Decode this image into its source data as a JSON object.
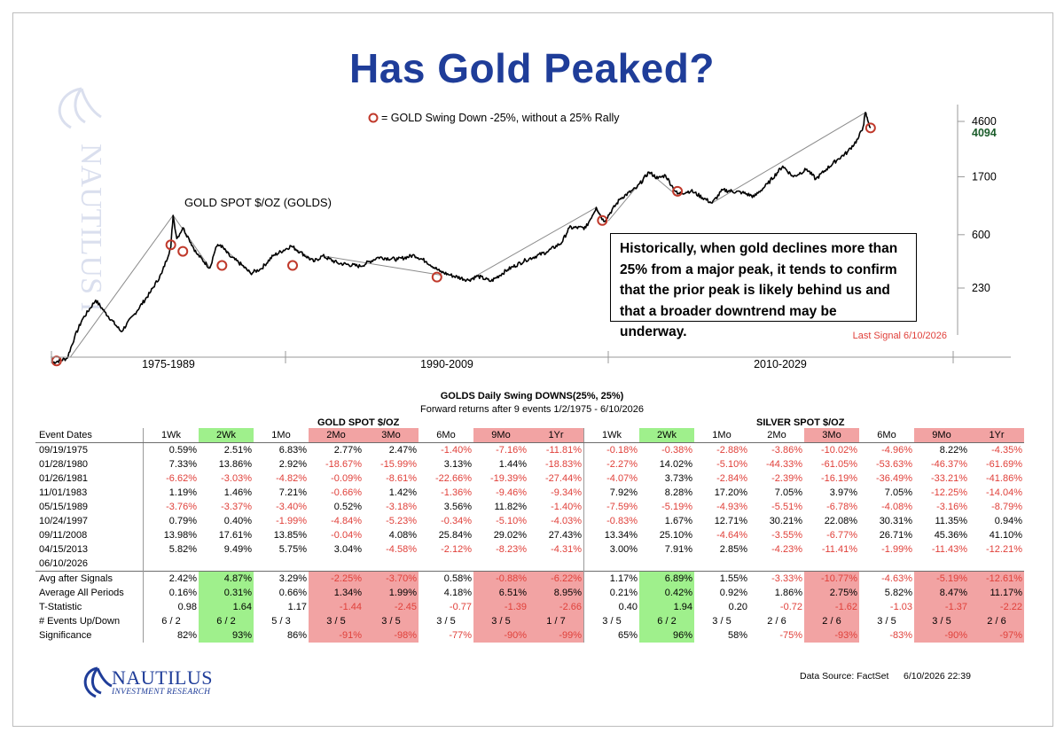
{
  "title": "Has Gold Peaked?",
  "legend": "= GOLD Swing Down -25%, without a 25% Rally",
  "series_label": "GOLD SPOT $/OZ (GOLDS)",
  "callout": "Historically, when gold declines more than 25% from a major peak, it tends to confirm that the prior peak is likely behind us and that a broader downtrend may be underway.",
  "last_signal": "Last Signal 6/10/2026",
  "watermark": "NAUTILUS INVESTMENT RESEARCH",
  "colors": {
    "title": "#1f3d99",
    "marker": "#c0392b",
    "neg": "#e0403a",
    "red_cell": "#f2a3a3",
    "green_cell": "#9ff08c",
    "last_value": "#1a5c2a"
  },
  "chart_data": {
    "type": "line",
    "series": [
      {
        "name": "GOLD SPOT $/OZ (GOLDS)"
      }
    ],
    "y_scale": "log",
    "y_ticks": [
      "4600",
      "1700",
      "600",
      "230"
    ],
    "last_value": "4094",
    "x_periods": [
      "1975-1989",
      "1990-2009",
      "2010-2029"
    ],
    "points": [
      {
        "x": 1972.0,
        "y": 60
      },
      {
        "x": 1973.0,
        "y": 65
      },
      {
        "x": 1973.5,
        "y": 95
      },
      {
        "x": 1974.0,
        "y": 130
      },
      {
        "x": 1974.9,
        "y": 185
      },
      {
        "x": 1975.5,
        "y": 150
      },
      {
        "x": 1976.6,
        "y": 105
      },
      {
        "x": 1977.5,
        "y": 145
      },
      {
        "x": 1978.5,
        "y": 210
      },
      {
        "x": 1979.3,
        "y": 300
      },
      {
        "x": 1979.9,
        "y": 480
      },
      {
        "x": 1980.05,
        "y": 850
      },
      {
        "x": 1980.3,
        "y": 560
      },
      {
        "x": 1980.7,
        "y": 680
      },
      {
        "x": 1981.1,
        "y": 560
      },
      {
        "x": 1981.6,
        "y": 430
      },
      {
        "x": 1982.5,
        "y": 330
      },
      {
        "x": 1982.9,
        "y": 480
      },
      {
        "x": 1983.2,
        "y": 500
      },
      {
        "x": 1983.8,
        "y": 410
      },
      {
        "x": 1984.6,
        "y": 350
      },
      {
        "x": 1985.2,
        "y": 300
      },
      {
        "x": 1985.9,
        "y": 325
      },
      {
        "x": 1986.7,
        "y": 410
      },
      {
        "x": 1987.9,
        "y": 490
      },
      {
        "x": 1988.5,
        "y": 440
      },
      {
        "x": 1989.4,
        "y": 370
      },
      {
        "x": 1990.0,
        "y": 410
      },
      {
        "x": 1991.0,
        "y": 360
      },
      {
        "x": 1992.5,
        "y": 340
      },
      {
        "x": 1993.7,
        "y": 400
      },
      {
        "x": 1995.0,
        "y": 385
      },
      {
        "x": 1996.1,
        "y": 415
      },
      {
        "x": 1996.9,
        "y": 370
      },
      {
        "x": 1997.8,
        "y": 310
      },
      {
        "x": 1998.5,
        "y": 290
      },
      {
        "x": 1999.7,
        "y": 265
      },
      {
        "x": 2000.3,
        "y": 285
      },
      {
        "x": 2001.2,
        "y": 260
      },
      {
        "x": 2002.3,
        "y": 320
      },
      {
        "x": 2003.5,
        "y": 380
      },
      {
        "x": 2004.9,
        "y": 440
      },
      {
        "x": 2005.9,
        "y": 520
      },
      {
        "x": 2006.4,
        "y": 680
      },
      {
        "x": 2007.5,
        "y": 680
      },
      {
        "x": 2008.2,
        "y": 980
      },
      {
        "x": 2008.7,
        "y": 760
      },
      {
        "x": 2009.8,
        "y": 1150
      },
      {
        "x": 2010.9,
        "y": 1400
      },
      {
        "x": 2011.7,
        "y": 1850
      },
      {
        "x": 2012.3,
        "y": 1650
      },
      {
        "x": 2012.8,
        "y": 1750
      },
      {
        "x": 2013.3,
        "y": 1400
      },
      {
        "x": 2013.6,
        "y": 1250
      },
      {
        "x": 2014.5,
        "y": 1320
      },
      {
        "x": 2015.9,
        "y": 1060
      },
      {
        "x": 2016.6,
        "y": 1340
      },
      {
        "x": 2017.9,
        "y": 1280
      },
      {
        "x": 2018.7,
        "y": 1190
      },
      {
        "x": 2019.6,
        "y": 1500
      },
      {
        "x": 2020.6,
        "y": 2060
      },
      {
        "x": 2021.3,
        "y": 1700
      },
      {
        "x": 2022.2,
        "y": 1950
      },
      {
        "x": 2022.8,
        "y": 1630
      },
      {
        "x": 2023.5,
        "y": 1950
      },
      {
        "x": 2024.3,
        "y": 2350
      },
      {
        "x": 2024.9,
        "y": 2650
      },
      {
        "x": 2025.6,
        "y": 3350
      },
      {
        "x": 2025.95,
        "y": 4200
      },
      {
        "x": 2026.1,
        "y": 5400
      },
      {
        "x": 2026.25,
        "y": 4700
      },
      {
        "x": 2026.44,
        "y": 4094
      }
    ],
    "signals": [
      {
        "x": 1972.3,
        "y": 62
      },
      {
        "x": 1979.9,
        "y": 500
      },
      {
        "x": 1980.7,
        "y": 445
      },
      {
        "x": 1983.3,
        "y": 345
      },
      {
        "x": 1988.0,
        "y": 345
      },
      {
        "x": 1997.6,
        "y": 280
      },
      {
        "x": 2008.6,
        "y": 775
      },
      {
        "x": 2013.6,
        "y": 1310
      },
      {
        "x": 2026.44,
        "y": 4094
      }
    ],
    "peak_lines": [
      [
        {
          "x": 1973.2,
          "y": 66
        },
        {
          "x": 1980.05,
          "y": 850
        }
      ],
      [
        {
          "x": 1980.05,
          "y": 850
        },
        {
          "x": 1982.5,
          "y": 330
        }
      ],
      [
        {
          "x": 1983.2,
          "y": 500
        },
        {
          "x": 1985.2,
          "y": 300
        }
      ],
      [
        {
          "x": 1987.9,
          "y": 490
        },
        {
          "x": 1989.4,
          "y": 380
        }
      ],
      [
        {
          "x": 1990.0,
          "y": 410
        },
        {
          "x": 1997.9,
          "y": 290
        }
      ],
      [
        {
          "x": 1999.7,
          "y": 265
        },
        {
          "x": 2008.2,
          "y": 980
        }
      ],
      [
        {
          "x": 2008.2,
          "y": 980
        },
        {
          "x": 2008.7,
          "y": 760
        }
      ],
      [
        {
          "x": 2009.0,
          "y": 770
        },
        {
          "x": 2011.7,
          "y": 1850
        }
      ],
      [
        {
          "x": 2011.7,
          "y": 1850
        },
        {
          "x": 2013.6,
          "y": 1200
        }
      ],
      [
        {
          "x": 2015.9,
          "y": 1060
        },
        {
          "x": 2026.1,
          "y": 5400
        }
      ]
    ]
  },
  "table": {
    "title": "GOLDS Daily Swing DOWNS(25%, 25%)",
    "subtitle": "Forward returns after 9 events 1/2/1975 - 6/10/2026",
    "group_gold": "GOLD SPOT $/OZ",
    "group_silver": "SILVER SPOT $/OZ",
    "row_header": "Event Dates",
    "columns": [
      "1Wk",
      "2Wk",
      "1Mo",
      "2Mo",
      "3Mo",
      "6Mo",
      "9Mo",
      "1Yr",
      "1Wk",
      "2Wk",
      "1Mo",
      "2Mo",
      "3Mo",
      "6Mo",
      "9Mo",
      "1Yr"
    ],
    "header_fill": [
      "",
      "green",
      "",
      "red",
      "red",
      "",
      "red",
      "red",
      "",
      "green",
      "",
      "",
      "red",
      "",
      "red",
      "red"
    ],
    "events": [
      {
        "date": "09/19/1975",
        "values": [
          "0.59%",
          "2.51%",
          "6.83%",
          "2.77%",
          "2.47%",
          "-1.40%",
          "-7.16%",
          "-11.81%",
          "-0.18%",
          "-0.38%",
          "-2.88%",
          "-3.86%",
          "-10.02%",
          "-4.96%",
          "8.22%",
          "-4.35%"
        ]
      },
      {
        "date": "01/28/1980",
        "values": [
          "7.33%",
          "13.86%",
          "2.92%",
          "-18.67%",
          "-15.99%",
          "3.13%",
          "1.44%",
          "-18.83%",
          "-2.27%",
          "14.02%",
          "-5.10%",
          "-44.33%",
          "-61.05%",
          "-53.63%",
          "-46.37%",
          "-61.69%"
        ]
      },
      {
        "date": "01/26/1981",
        "values": [
          "-6.62%",
          "-3.03%",
          "-4.82%",
          "-0.09%",
          "-8.61%",
          "-22.66%",
          "-19.39%",
          "-27.44%",
          "-4.07%",
          "3.73%",
          "-2.84%",
          "-2.39%",
          "-16.19%",
          "-36.49%",
          "-33.21%",
          "-41.86%"
        ]
      },
      {
        "date": "11/01/1983",
        "values": [
          "1.19%",
          "1.46%",
          "7.21%",
          "-0.66%",
          "1.42%",
          "-1.36%",
          "-9.46%",
          "-9.34%",
          "7.92%",
          "8.28%",
          "17.20%",
          "7.05%",
          "3.97%",
          "7.05%",
          "-12.25%",
          "-14.04%"
        ]
      },
      {
        "date": "05/15/1989",
        "values": [
          "-3.76%",
          "-3.37%",
          "-3.40%",
          "0.52%",
          "-3.18%",
          "3.56%",
          "11.82%",
          "-1.40%",
          "-7.59%",
          "-5.19%",
          "-4.93%",
          "-5.51%",
          "-6.78%",
          "-4.08%",
          "-3.16%",
          "-8.79%"
        ]
      },
      {
        "date": "10/24/1997",
        "values": [
          "0.79%",
          "0.40%",
          "-1.99%",
          "-4.84%",
          "-5.23%",
          "-0.34%",
          "-5.10%",
          "-4.03%",
          "-0.83%",
          "1.67%",
          "12.71%",
          "30.21%",
          "22.08%",
          "30.31%",
          "11.35%",
          "0.94%"
        ]
      },
      {
        "date": "09/11/2008",
        "values": [
          "13.98%",
          "17.61%",
          "13.85%",
          "-0.04%",
          "4.08%",
          "25.84%",
          "29.02%",
          "27.43%",
          "13.34%",
          "25.10%",
          "-4.64%",
          "-3.55%",
          "-6.77%",
          "26.71%",
          "45.36%",
          "41.10%"
        ]
      },
      {
        "date": "04/15/2013",
        "values": [
          "5.82%",
          "9.49%",
          "5.75%",
          "3.04%",
          "-4.58%",
          "-2.12%",
          "-8.23%",
          "-4.31%",
          "3.00%",
          "7.91%",
          "2.85%",
          "-4.23%",
          "-11.41%",
          "-1.99%",
          "-11.43%",
          "-12.21%"
        ]
      },
      {
        "date": "06/10/2026",
        "values": [
          "",
          "",
          "",
          "",
          "",
          "",
          "",
          "",
          "",
          "",
          "",
          "",
          "",
          "",
          "",
          ""
        ]
      }
    ],
    "stats": [
      {
        "label": "Avg after Signals",
        "values": [
          "2.42%",
          "4.87%",
          "3.29%",
          "-2.25%",
          "-3.70%",
          "0.58%",
          "-0.88%",
          "-6.22%",
          "1.17%",
          "6.89%",
          "1.55%",
          "-3.33%",
          "-10.77%",
          "-4.63%",
          "-5.19%",
          "-12.61%"
        ]
      },
      {
        "label": "Average All Periods",
        "values": [
          "0.16%",
          "0.31%",
          "0.66%",
          "1.34%",
          "1.99%",
          "4.18%",
          "6.51%",
          "8.95%",
          "0.21%",
          "0.42%",
          "0.92%",
          "1.86%",
          "2.75%",
          "5.82%",
          "8.47%",
          "11.17%"
        ]
      },
      {
        "label": "T-Statistic",
        "values": [
          "0.98",
          "1.64",
          "1.17",
          "-1.44",
          "-2.45",
          "-0.77",
          "-1.39",
          "-2.66",
          "0.40",
          "1.94",
          "0.20",
          "-0.72",
          "-1.62",
          "-1.03",
          "-1.37",
          "-2.22"
        ]
      },
      {
        "label": "# Events Up/Down",
        "values": [
          "6 / 2",
          "6 / 2",
          "5 / 3",
          "3 / 5",
          "3 / 5",
          "3 / 5",
          "3 / 5",
          "1 / 7",
          "3 / 5",
          "6 / 2",
          "3 / 5",
          "2 / 6",
          "2 / 6",
          "3 / 5",
          "3 / 5",
          "2 / 6"
        ]
      },
      {
        "label": "Significance",
        "values": [
          "82%",
          "93%",
          "86%",
          "-91%",
          "-98%",
          "-77%",
          "-90%",
          "-99%",
          "65%",
          "96%",
          "58%",
          "-75%",
          "-93%",
          "-83%",
          "-90%",
          "-97%"
        ]
      }
    ]
  },
  "footer": {
    "logo_name": "NAUTILUS",
    "logo_sub": "INVESTMENT RESEARCH",
    "source": "Data Source: FactSet",
    "timestamp": "6/10/2026 22:39"
  }
}
